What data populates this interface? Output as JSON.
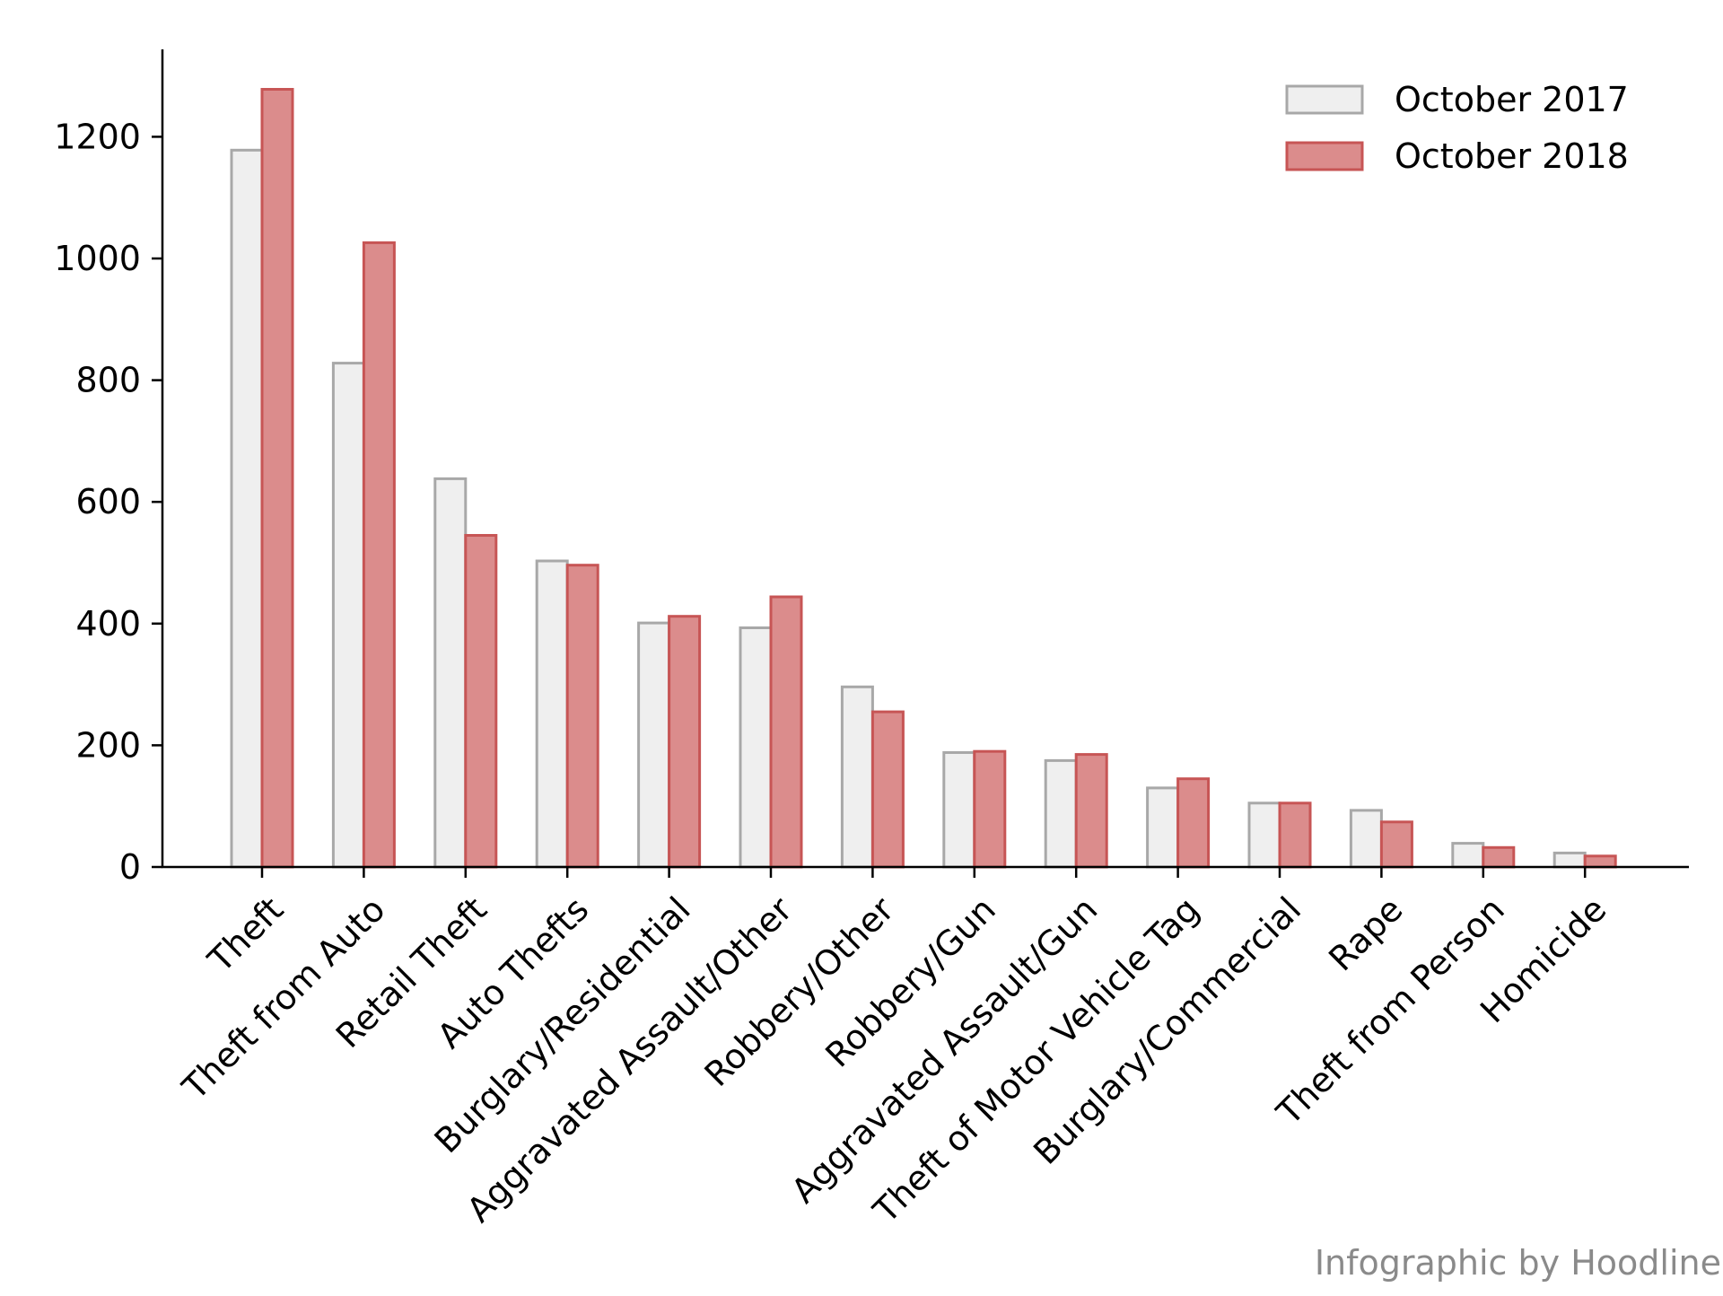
{
  "chart_data": {
    "type": "bar",
    "categories": [
      "Theft",
      "Theft from Auto",
      "Retail Theft",
      "Auto Thefts",
      "Burglary/Residential",
      "Aggravated Assault/Other",
      "Robbery/Other",
      "Robbery/Gun",
      "Aggravated Assault/Gun",
      "Theft of Motor Vehicle Tag",
      "Burglary/Commercial",
      "Rape",
      "Theft from Person",
      "Homicide"
    ],
    "series": [
      {
        "name": "October 2017",
        "values": [
          1178,
          828,
          638,
          503,
          401,
          393,
          296,
          188,
          175,
          130,
          105,
          93,
          39,
          23
        ],
        "fill": "#efefef",
        "stroke": "#a8a8a8"
      },
      {
        "name": "October 2018",
        "values": [
          1278,
          1026,
          545,
          496,
          412,
          444,
          255,
          190,
          185,
          145,
          105,
          74,
          32,
          18
        ],
        "fill": "#db8c8c",
        "stroke": "#c75555"
      }
    ],
    "yticks": [
      0,
      200,
      400,
      600,
      800,
      1000,
      1200
    ],
    "ylim": [
      0,
      1340
    ],
    "legend_position": "top-right",
    "grid": false
  },
  "credit": "Infographic by Hoodline"
}
